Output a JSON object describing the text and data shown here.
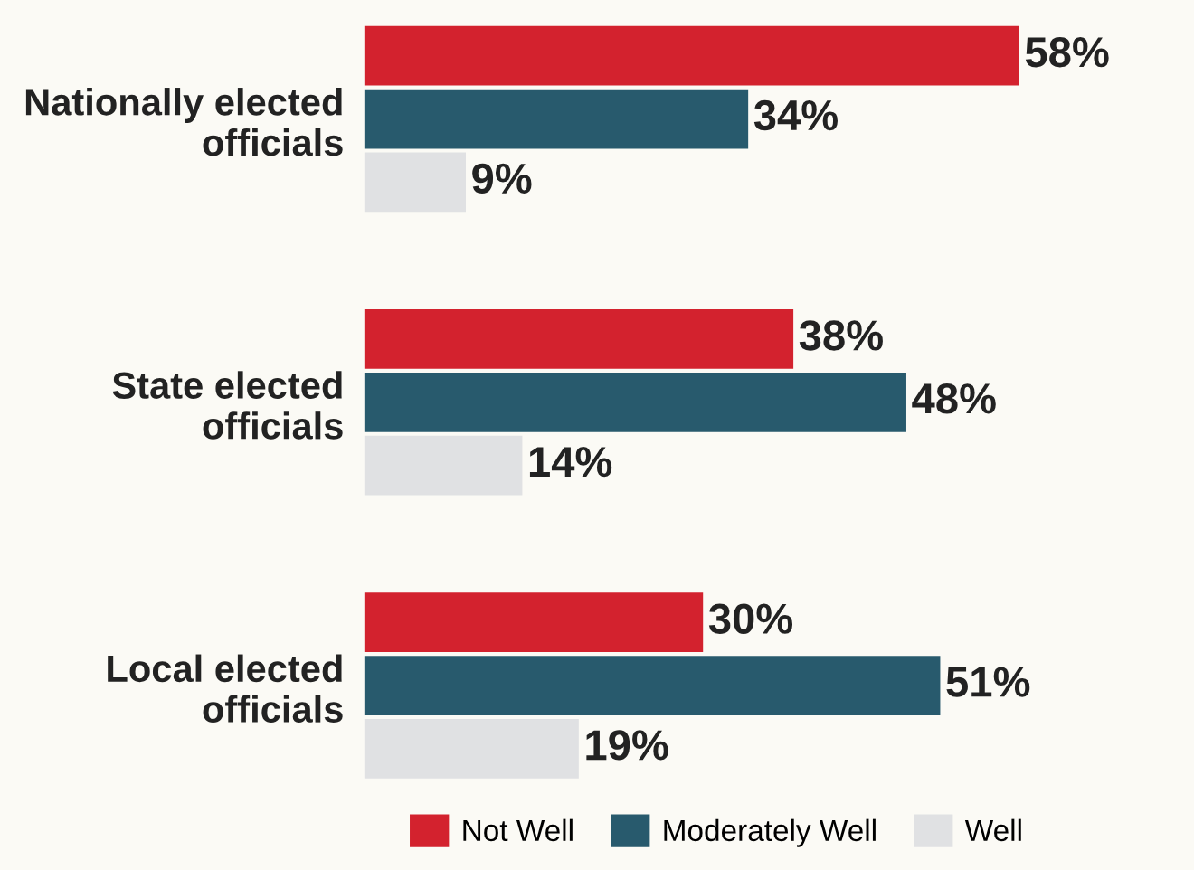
{
  "chart_data": {
    "type": "bar",
    "orientation": "horizontal",
    "categories": [
      "Nationally elected officials",
      "State elected officials",
      "Local elected officials"
    ],
    "series": [
      {
        "name": "Not Well",
        "color": "#d3222e",
        "values": [
          58,
          38,
          30
        ],
        "value_labels": [
          "58%",
          "38%",
          "30%"
        ]
      },
      {
        "name": "Moderately Well",
        "color": "#285a6d",
        "values": [
          34,
          48,
          51
        ],
        "value_labels": [
          "34%",
          "48%",
          "51%"
        ]
      },
      {
        "name": "Well",
        "color": "#e0e1e3",
        "values": [
          9,
          14,
          19
        ],
        "value_labels": [
          "9%",
          "14%",
          "19%"
        ]
      }
    ],
    "legend": "bottom",
    "grid": false
  }
}
